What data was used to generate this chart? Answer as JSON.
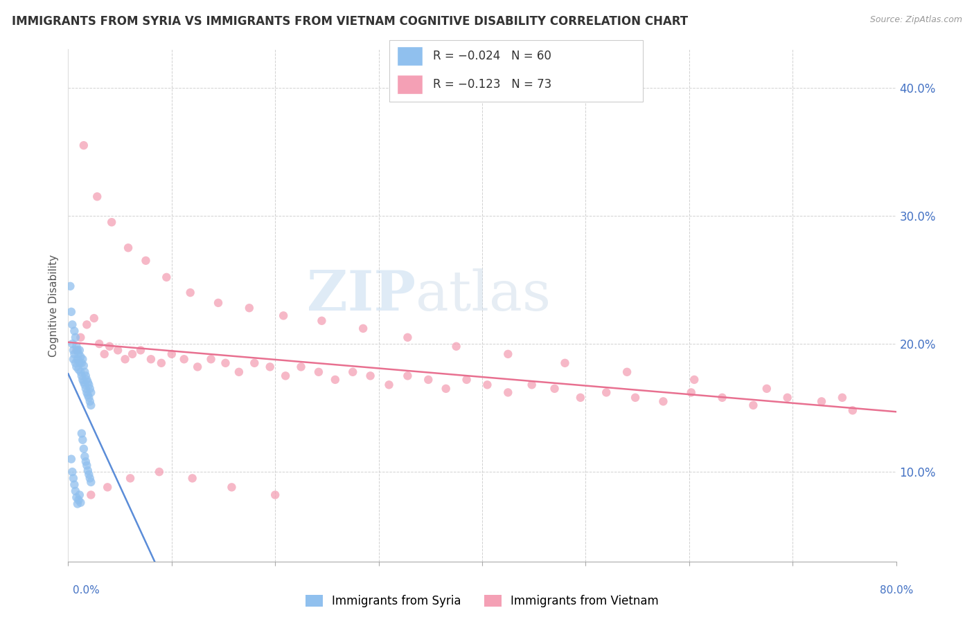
{
  "title": "IMMIGRANTS FROM SYRIA VS IMMIGRANTS FROM VIETNAM COGNITIVE DISABILITY CORRELATION CHART",
  "source": "Source: ZipAtlas.com",
  "ylabel": "Cognitive Disability",
  "right_ytick_vals": [
    0.1,
    0.2,
    0.3,
    0.4
  ],
  "xmin": 0.0,
  "xmax": 0.8,
  "ymin": 0.03,
  "ymax": 0.43,
  "syria_R": -0.024,
  "syria_N": 60,
  "vietnam_R": -0.123,
  "vietnam_N": 73,
  "syria_color": "#90C0EE",
  "vietnam_color": "#F4A0B5",
  "syria_line_color": "#5B8DD9",
  "vietnam_line_color": "#E87090",
  "watermark_zip": "ZIP",
  "watermark_atlas": "atlas",
  "bottom_legend_syria": "Immigrants from Syria",
  "bottom_legend_vietnam": "Immigrants from Vietnam",
  "syria_x": [
    0.002,
    0.003,
    0.004,
    0.004,
    0.005,
    0.005,
    0.006,
    0.006,
    0.007,
    0.007,
    0.008,
    0.008,
    0.009,
    0.009,
    0.01,
    0.01,
    0.011,
    0.011,
    0.012,
    0.012,
    0.013,
    0.013,
    0.014,
    0.014,
    0.015,
    0.015,
    0.016,
    0.016,
    0.017,
    0.017,
    0.018,
    0.018,
    0.019,
    0.019,
    0.02,
    0.02,
    0.021,
    0.021,
    0.022,
    0.022,
    0.003,
    0.004,
    0.005,
    0.006,
    0.007,
    0.008,
    0.009,
    0.01,
    0.011,
    0.012,
    0.013,
    0.014,
    0.015,
    0.016,
    0.017,
    0.018,
    0.019,
    0.02,
    0.021,
    0.022
  ],
  "syria_y": [
    0.245,
    0.225,
    0.215,
    0.2,
    0.195,
    0.188,
    0.21,
    0.192,
    0.205,
    0.185,
    0.198,
    0.182,
    0.195,
    0.188,
    0.192,
    0.18,
    0.195,
    0.185,
    0.19,
    0.178,
    0.185,
    0.175,
    0.188,
    0.172,
    0.183,
    0.17,
    0.178,
    0.168,
    0.175,
    0.165,
    0.172,
    0.162,
    0.17,
    0.16,
    0.168,
    0.158,
    0.165,
    0.155,
    0.162,
    0.152,
    0.11,
    0.1,
    0.095,
    0.09,
    0.085,
    0.08,
    0.075,
    0.078,
    0.082,
    0.076,
    0.13,
    0.125,
    0.118,
    0.112,
    0.108,
    0.105,
    0.101,
    0.098,
    0.095,
    0.092
  ],
  "vietnam_x": [
    0.008,
    0.012,
    0.018,
    0.025,
    0.03,
    0.035,
    0.04,
    0.048,
    0.055,
    0.062,
    0.07,
    0.08,
    0.09,
    0.1,
    0.112,
    0.125,
    0.138,
    0.152,
    0.165,
    0.18,
    0.195,
    0.21,
    0.225,
    0.242,
    0.258,
    0.275,
    0.292,
    0.31,
    0.328,
    0.348,
    0.365,
    0.385,
    0.405,
    0.425,
    0.448,
    0.47,
    0.495,
    0.52,
    0.548,
    0.575,
    0.602,
    0.632,
    0.662,
    0.695,
    0.728,
    0.758,
    0.015,
    0.028,
    0.042,
    0.058,
    0.075,
    0.095,
    0.118,
    0.145,
    0.175,
    0.208,
    0.245,
    0.285,
    0.328,
    0.375,
    0.425,
    0.48,
    0.54,
    0.605,
    0.675,
    0.748,
    0.022,
    0.038,
    0.06,
    0.088,
    0.12,
    0.158,
    0.2
  ],
  "vietnam_y": [
    0.195,
    0.205,
    0.215,
    0.22,
    0.2,
    0.192,
    0.198,
    0.195,
    0.188,
    0.192,
    0.195,
    0.188,
    0.185,
    0.192,
    0.188,
    0.182,
    0.188,
    0.185,
    0.178,
    0.185,
    0.182,
    0.175,
    0.182,
    0.178,
    0.172,
    0.178,
    0.175,
    0.168,
    0.175,
    0.172,
    0.165,
    0.172,
    0.168,
    0.162,
    0.168,
    0.165,
    0.158,
    0.162,
    0.158,
    0.155,
    0.162,
    0.158,
    0.152,
    0.158,
    0.155,
    0.148,
    0.355,
    0.315,
    0.295,
    0.275,
    0.265,
    0.252,
    0.24,
    0.232,
    0.228,
    0.222,
    0.218,
    0.212,
    0.205,
    0.198,
    0.192,
    0.185,
    0.178,
    0.172,
    0.165,
    0.158,
    0.082,
    0.088,
    0.095,
    0.1,
    0.095,
    0.088,
    0.082
  ]
}
